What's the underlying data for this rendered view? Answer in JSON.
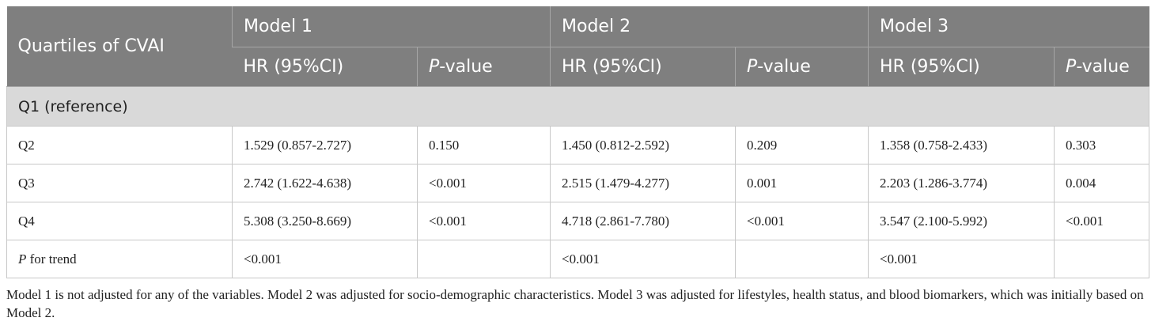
{
  "header": {
    "corner": "Quartiles of CVAI",
    "models": [
      "Model 1",
      "Model 2",
      "Model 3"
    ],
    "subheaders": [
      {
        "text": "HR (95%CI)"
      },
      {
        "italic": "P",
        "text": "-value"
      },
      {
        "text": "HR (95%CI)"
      },
      {
        "italic": "P",
        "text": "-value"
      },
      {
        "text": "HR (95%CI)"
      },
      {
        "italic": "P",
        "text": "-value"
      }
    ]
  },
  "section": "Q1 (reference)",
  "rows": [
    {
      "label": {
        "text": "Q2"
      },
      "cells": [
        "1.529 (0.857-2.727)",
        "0.150",
        "1.450 (0.812-2.592)",
        "0.209",
        "1.358 (0.758-2.433)",
        "0.303"
      ]
    },
    {
      "label": {
        "text": "Q3"
      },
      "cells": [
        "2.742 (1.622-4.638)",
        "<0.001",
        "2.515 (1.479-4.277)",
        "0.001",
        "2.203 (1.286-3.774)",
        "0.004"
      ]
    },
    {
      "label": {
        "text": "Q4"
      },
      "cells": [
        "5.308 (3.250-8.669)",
        "<0.001",
        "4.718 (2.861-7.780)",
        "<0.001",
        "3.547 (2.100-5.992)",
        "<0.001"
      ]
    },
    {
      "label": {
        "italic": "P",
        "text": " for trend"
      },
      "cells": [
        "<0.001",
        null,
        "<0.001",
        null,
        "<0.001",
        null
      ]
    }
  ],
  "footnote": "Model 1 is not adjusted for any of the variables. Model 2 was adjusted for socio-demographic characteristics. Model 3 was adjusted for lifestyles, health status, and blood biomarkers, which was initially based on Model 2."
}
